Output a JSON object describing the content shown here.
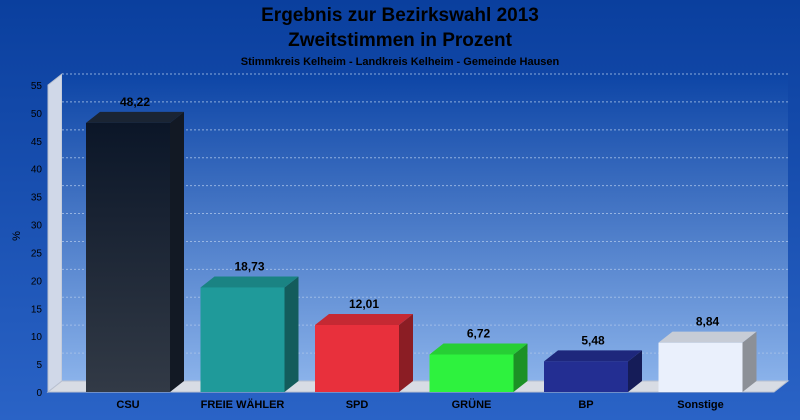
{
  "chart_data": {
    "type": "bar",
    "title": "Ergebnis zur Bezirkswahl 2013",
    "subtitle": "Zweitstimmen in Prozent",
    "caption": "Stimmkreis Kelheim - Landkreis Kelheim - Gemeinde Hausen",
    "xlabel": "",
    "ylabel": "%",
    "ylim": [
      0,
      55
    ],
    "yticks": [
      0,
      5,
      10,
      15,
      20,
      25,
      30,
      35,
      40,
      45,
      50,
      55
    ],
    "grid": true,
    "categories": [
      "CSU",
      "FREIE WÄHLER",
      "SPD",
      "GRÜNE",
      "BP",
      "Sonstige"
    ],
    "values": [
      48.22,
      18.73,
      12.01,
      6.72,
      5.48,
      8.84
    ],
    "value_labels": [
      "48,22",
      "18,73",
      "12,01",
      "6,72",
      "5,48",
      "8,84"
    ],
    "colors": [
      "#1e2a3c",
      "#1f9a9a",
      "#e8303c",
      "#2ef23e",
      "#232e92",
      "#eaf0fc"
    ],
    "background_color": "#0b44a8"
  }
}
